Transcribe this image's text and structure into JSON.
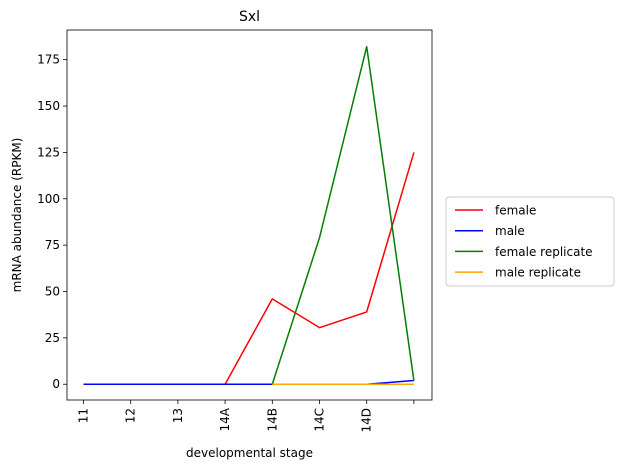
{
  "chart_data": {
    "type": "line",
    "title": "Sxl",
    "xlabel": "developmental stage",
    "ylabel": "mRNA abundance (RPKM)",
    "categories": [
      "11",
      "12",
      "13",
      "14A",
      "14B",
      "14C",
      "14D",
      ""
    ],
    "ylim": [
      -8.5,
      191
    ],
    "yticks": [
      0,
      25,
      50,
      75,
      100,
      125,
      150,
      175
    ],
    "grid": false,
    "legend_position": "outside-right",
    "series": [
      {
        "name": "female",
        "color": "#ff0000",
        "values": [
          0,
          0,
          0,
          0,
          46,
          30.5,
          39,
          125
        ]
      },
      {
        "name": "male",
        "color": "#0000ff",
        "values": [
          0,
          0,
          0,
          0,
          0,
          0,
          0,
          2
        ]
      },
      {
        "name": "female replicate",
        "color": "#008000",
        "values": [
          null,
          null,
          null,
          null,
          0,
          79,
          182,
          2
        ]
      },
      {
        "name": "male replicate",
        "color": "#ffa500",
        "values": [
          null,
          null,
          null,
          null,
          0,
          0,
          0,
          0
        ]
      }
    ]
  }
}
